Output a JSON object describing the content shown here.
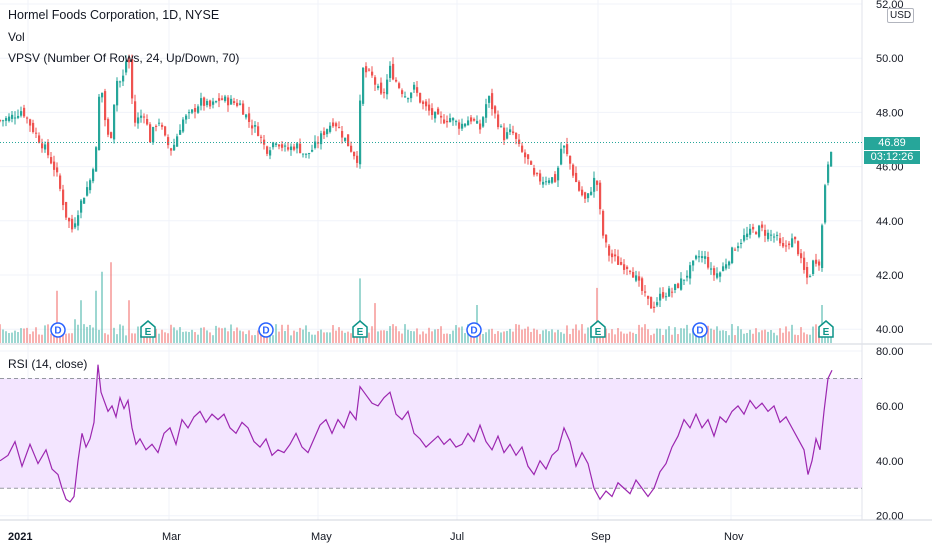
{
  "header": {
    "title": "Hormel Foods Corporation, 1D, NYSE",
    "vol": "Vol",
    "vpsv": "VPSV (Number Of Rows, 24, Up/Down, 70)"
  },
  "rsi_panel": {
    "title": "RSI (14, close)"
  },
  "currency": "USD",
  "last_price": {
    "value": "46.89",
    "countdown": "03:12:26"
  },
  "colors": {
    "up": "#26a69a",
    "down": "#ef5350",
    "rsi": "#9c27b0",
    "rsi_band": "#f3e5ff",
    "dividend": "#2962ff",
    "earnings": "#0d9488"
  },
  "chart_data": [
    {
      "type": "candlestick",
      "title": "Hormel Foods Corporation, 1D, NYSE",
      "ylim": [
        39.7,
        52
      ],
      "y_ticks": [
        "52.00",
        "50.00",
        "48.00",
        "46.00",
        "44.00",
        "42.00",
        "40.00"
      ],
      "y_tick_values": [
        52,
        50,
        48,
        46,
        44,
        42,
        40
      ],
      "x_ticks": [
        "2021",
        "Mar",
        "May",
        "Jul",
        "Sep",
        "Nov"
      ],
      "x_tick_days": [
        28,
        169,
        318,
        457,
        598,
        731
      ],
      "last_close": 46.89,
      "close_anchors": [
        [
          0,
          47.7
        ],
        [
          10,
          47.8
        ],
        [
          22,
          48.1
        ],
        [
          34,
          47.3
        ],
        [
          46,
          46.6
        ],
        [
          56,
          45.8
        ],
        [
          66,
          44.2
        ],
        [
          72,
          43.7
        ],
        [
          80,
          44.6
        ],
        [
          90,
          45.5
        ],
        [
          97,
          46.8
        ],
        [
          100,
          49.4
        ],
        [
          106,
          47.4
        ],
        [
          110,
          46.8
        ],
        [
          116,
          49.2
        ],
        [
          122,
          49.1
        ],
        [
          128,
          50.3
        ],
        [
          134,
          47.6
        ],
        [
          144,
          48.0
        ],
        [
          150,
          47.0
        ],
        [
          158,
          47.8
        ],
        [
          166,
          46.9
        ],
        [
          172,
          46.6
        ],
        [
          182,
          47.7
        ],
        [
          190,
          47.9
        ],
        [
          200,
          48.4
        ],
        [
          210,
          48.2
        ],
        [
          220,
          48.5
        ],
        [
          230,
          48.4
        ],
        [
          240,
          48.3
        ],
        [
          250,
          47.6
        ],
        [
          258,
          47.3
        ],
        [
          266,
          46.6
        ],
        [
          276,
          47.0
        ],
        [
          286,
          46.6
        ],
        [
          296,
          46.8
        ],
        [
          306,
          46.4
        ],
        [
          316,
          46.8
        ],
        [
          326,
          47.4
        ],
        [
          334,
          47.7
        ],
        [
          342,
          47.2
        ],
        [
          350,
          46.7
        ],
        [
          357,
          46.3
        ],
        [
          362,
          49.6
        ],
        [
          372,
          49.3
        ],
        [
          382,
          48.5
        ],
        [
          390,
          49.6
        ],
        [
          398,
          49.0
        ],
        [
          406,
          48.6
        ],
        [
          414,
          48.9
        ],
        [
          422,
          48.3
        ],
        [
          430,
          48.0
        ],
        [
          440,
          47.7
        ],
        [
          450,
          47.8
        ],
        [
          460,
          47.5
        ],
        [
          470,
          47.8
        ],
        [
          480,
          47.4
        ],
        [
          488,
          48.6
        ],
        [
          496,
          47.8
        ],
        [
          504,
          47.1
        ],
        [
          512,
          47.3
        ],
        [
          520,
          46.6
        ],
        [
          528,
          46.2
        ],
        [
          534,
          45.6
        ],
        [
          542,
          45.5
        ],
        [
          550,
          45.6
        ],
        [
          556,
          45.5
        ],
        [
          562,
          46.9
        ],
        [
          570,
          46.1
        ],
        [
          578,
          45.2
        ],
        [
          586,
          44.7
        ],
        [
          596,
          45.7
        ],
        [
          602,
          43.6
        ],
        [
          608,
          42.8
        ],
        [
          614,
          42.6
        ],
        [
          620,
          42.4
        ],
        [
          630,
          42.3
        ],
        [
          638,
          41.7
        ],
        [
          646,
          41.1
        ],
        [
          652,
          40.8
        ],
        [
          662,
          41.3
        ],
        [
          672,
          41.4
        ],
        [
          682,
          41.8
        ],
        [
          692,
          42.3
        ],
        [
          698,
          42.7
        ],
        [
          706,
          42.6
        ],
        [
          712,
          42.0
        ],
        [
          720,
          42.1
        ],
        [
          728,
          42.6
        ],
        [
          736,
          43.1
        ],
        [
          744,
          43.4
        ],
        [
          752,
          43.6
        ],
        [
          760,
          43.7
        ],
        [
          768,
          43.5
        ],
        [
          776,
          43.4
        ],
        [
          782,
          42.9
        ],
        [
          790,
          43.3
        ],
        [
          796,
          43.2
        ],
        [
          802,
          42.3
        ],
        [
          808,
          41.8
        ],
        [
          814,
          42.6
        ],
        [
          820,
          42.5
        ],
        [
          824,
          45.1
        ],
        [
          828,
          46.2
        ],
        [
          832,
          46.89
        ]
      ],
      "volume": {
        "ylim": [
          0,
          1
        ],
        "spikes": [
          [
            58,
            0.55
          ],
          [
            74,
            0.25
          ],
          [
            80,
            0.45
          ],
          [
            96,
            0.55
          ],
          [
            103,
            0.75
          ],
          [
            110,
            0.85
          ],
          [
            128,
            0.45
          ],
          [
            359,
            0.68
          ],
          [
            376,
            0.42
          ],
          [
            478,
            0.4
          ],
          [
            598,
            0.58
          ],
          [
            822,
            0.4
          ]
        ]
      },
      "events": [
        {
          "type": "dividend",
          "label": "D",
          "day": 58
        },
        {
          "type": "earnings",
          "label": "E",
          "day": 148
        },
        {
          "type": "dividend",
          "label": "D",
          "day": 266
        },
        {
          "type": "earnings",
          "label": "E",
          "day": 360
        },
        {
          "type": "dividend",
          "label": "D",
          "day": 474
        },
        {
          "type": "earnings",
          "label": "E",
          "day": 598
        },
        {
          "type": "dividend",
          "label": "D",
          "day": 700
        },
        {
          "type": "earnings",
          "label": "E",
          "day": 826
        }
      ]
    },
    {
      "type": "line",
      "title": "RSI (14, close)",
      "ylim": [
        20,
        80
      ],
      "y_ticks": [
        "80.00",
        "60.00",
        "40.00",
        "20.00"
      ],
      "y_tick_values": [
        80,
        60,
        40,
        20
      ],
      "bands": [
        30,
        70
      ],
      "x": [
        0,
        8,
        15,
        22,
        30,
        38,
        46,
        52,
        58,
        62,
        66,
        70,
        74,
        78,
        82,
        86,
        90,
        94,
        98,
        101,
        104,
        108,
        112,
        116,
        120,
        124,
        128,
        132,
        136,
        140,
        146,
        152,
        158,
        164,
        170,
        176,
        182,
        188,
        194,
        200,
        206,
        212,
        218,
        224,
        230,
        236,
        242,
        248,
        254,
        260,
        266,
        272,
        278,
        284,
        290,
        296,
        302,
        308,
        314,
        320,
        326,
        332,
        338,
        344,
        350,
        356,
        360,
        366,
        372,
        378,
        384,
        390,
        396,
        402,
        408,
        414,
        420,
        426,
        432,
        438,
        444,
        450,
        456,
        462,
        468,
        474,
        480,
        486,
        492,
        498,
        504,
        510,
        516,
        522,
        528,
        534,
        540,
        546,
        552,
        558,
        564,
        570,
        576,
        582,
        588,
        594,
        600,
        606,
        612,
        618,
        624,
        630,
        636,
        642,
        648,
        654,
        660,
        666,
        672,
        678,
        684,
        690,
        696,
        702,
        708,
        714,
        720,
        726,
        732,
        738,
        744,
        750,
        756,
        762,
        768,
        774,
        780,
        786,
        792,
        798,
        804,
        808,
        812,
        816,
        820,
        824,
        828,
        832
      ],
      "y": [
        40,
        42,
        47,
        38,
        46,
        39,
        44,
        37,
        35,
        30,
        26,
        25,
        27,
        40,
        50,
        45,
        48,
        54,
        75,
        65,
        62,
        58,
        60,
        56,
        63,
        59,
        62,
        52,
        46,
        48,
        44,
        46,
        43,
        50,
        52,
        46,
        55,
        52,
        56,
        58,
        54,
        57,
        55,
        57,
        52,
        50,
        54,
        52,
        47,
        45,
        48,
        42,
        44,
        43,
        46,
        50,
        45,
        43,
        48,
        53,
        55,
        50,
        55,
        52,
        58,
        55,
        67,
        64,
        61,
        60,
        63,
        65,
        57,
        55,
        58,
        50,
        48,
        45,
        47,
        49,
        46,
        48,
        45,
        46,
        50,
        47,
        53,
        47,
        44,
        49,
        43,
        46,
        42,
        45,
        38,
        35,
        40,
        37,
        42,
        44,
        52,
        47,
        38,
        43,
        39,
        30,
        26,
        29,
        27,
        32,
        30,
        28,
        33,
        30,
        27,
        30,
        36,
        39,
        45,
        49,
        55,
        52,
        57,
        52,
        55,
        49,
        56,
        54,
        58,
        60,
        57,
        62,
        59,
        61,
        58,
        60,
        54,
        56,
        52,
        48,
        44,
        35,
        40,
        48,
        44,
        58,
        70,
        73
      ]
    }
  ]
}
